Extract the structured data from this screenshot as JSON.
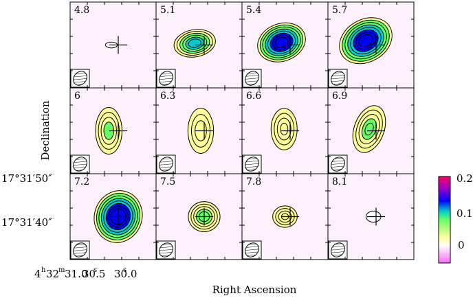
{
  "figure": {
    "xlabel": "Right Ascension",
    "ylabel": "Declination",
    "dec_ticks": [
      "17°31′50″",
      "17°31′40″"
    ],
    "ra_ticks": {
      "hours": "4",
      "minutes": "32",
      "seconds_a": "31.0",
      "seconds_b": "30.5",
      "seconds_c": "30.0",
      "h_sup": "h",
      "m_sup": "m",
      "s_sup": "s"
    },
    "colorbar_ticks": [
      "0.2",
      "0.1",
      "0"
    ],
    "panel_labels": [
      "4.8",
      "5.1",
      "5.4",
      "5.7",
      "6",
      "6.3",
      "6.6",
      "6.9",
      "7.2",
      "7.5",
      "7.8",
      "8.1"
    ]
  },
  "chart_data": {
    "type": "heatmap",
    "title": "",
    "xlabel": "Right Ascension",
    "ylabel": "Declination",
    "grid": false,
    "layout": "3 rows x 4 columns of channel maps",
    "channels": [
      4.8,
      5.1,
      5.4,
      5.7,
      6.0,
      6.3,
      6.6,
      6.9,
      7.2,
      7.5,
      7.8,
      8.1
    ],
    "colorbar": {
      "min": -0.05,
      "max": 0.2,
      "ticks": [
        0,
        0.1,
        0.2
      ]
    },
    "peak_intensity": [
      0.02,
      0.13,
      0.17,
      0.17,
      0.09,
      0.07,
      0.08,
      0.1,
      0.18,
      0.11,
      0.08,
      0.03
    ],
    "colormap": [
      "#ff66ff",
      "#ffffff",
      "#ffff99",
      "#66ff66",
      "#00cccc",
      "#0000ff",
      "#9900cc",
      "#ff0066"
    ]
  }
}
